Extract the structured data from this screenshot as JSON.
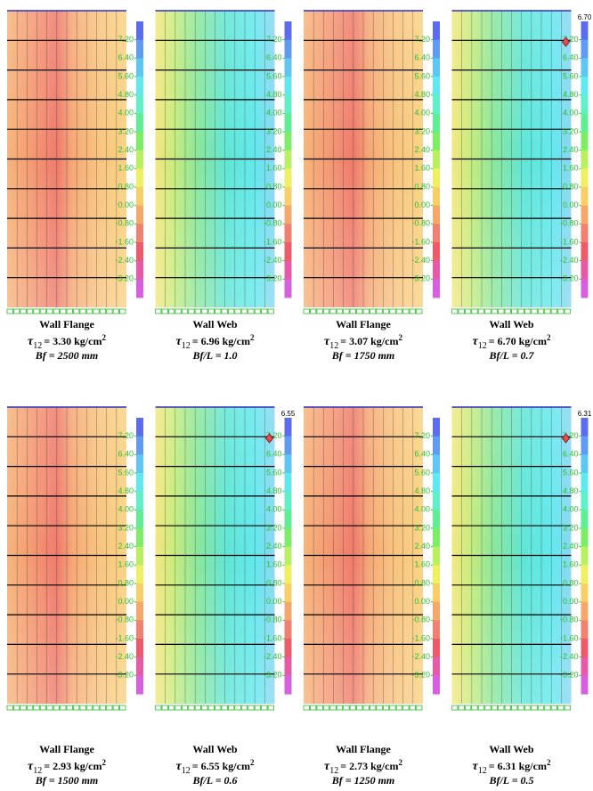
{
  "stress_symbol": "τ",
  "stress_subscript": "12",
  "unit_exponent": "2",
  "colorbar_labels": [
    "7.20",
    "6.40",
    "5.60",
    "4.80",
    "4.00",
    "3.20",
    "2.40",
    "1.60",
    "0.80",
    "0.00",
    "-0.80",
    "-1.60",
    "-2.40",
    "-3.20"
  ],
  "panels": [
    {
      "kind": "flange",
      "title": "Wall Flange",
      "stress": "= 3.30 kg/cm",
      "parameter": "Bf = 2500 mm"
    },
    {
      "kind": "web",
      "title": "Wall Web",
      "stress": "= 6.96 kg/cm",
      "parameter": "Bf/L = 1.0"
    },
    {
      "kind": "flange",
      "title": "Wall Flange",
      "stress": "= 3.07 kg/cm",
      "parameter": "Bf = 1750 mm"
    },
    {
      "kind": "web",
      "title": "Wall Web",
      "stress": "= 6.70 kg/cm",
      "parameter": "Bf/L = 0.7",
      "max_label": "6.70"
    },
    {
      "kind": "flange",
      "title": "Wall Flange",
      "stress": "= 2.93 kg/cm",
      "parameter": "Bf = 1500 mm"
    },
    {
      "kind": "web",
      "title": "Wall Web",
      "stress": "= 6.55 kg/cm",
      "parameter": "Bf/L = 0.6",
      "max_label": "6.55"
    },
    {
      "kind": "flange",
      "title": "Wall Flange",
      "stress": "= 2.73 kg/cm",
      "parameter": "Bf = 1250 mm"
    },
    {
      "kind": "web",
      "title": "Wall Web",
      "stress": "= 6.31 kg/cm",
      "parameter": "Bf/L = 0.5",
      "max_label": "6.31"
    }
  ]
}
